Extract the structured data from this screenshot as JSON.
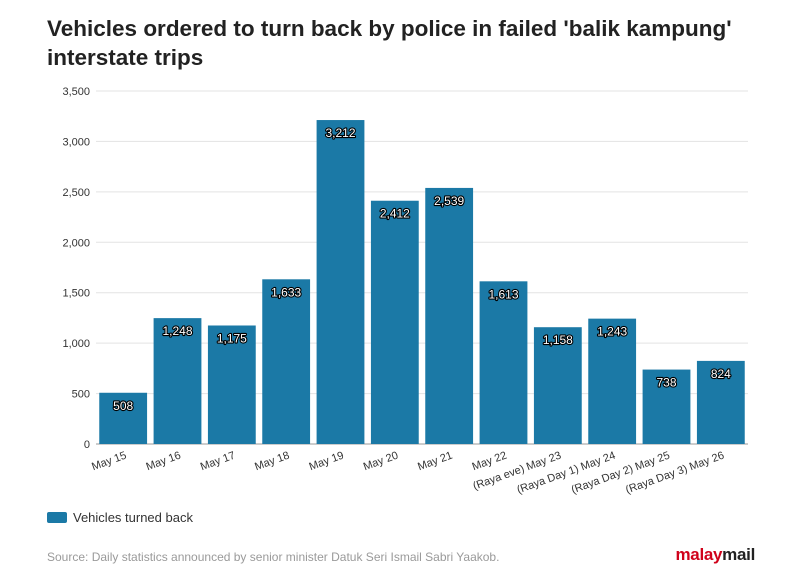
{
  "header": {
    "title": "Vehicles ordered to turn back by police in failed 'balik kampung' interstate trips"
  },
  "chart_data": {
    "type": "bar",
    "title": "Vehicles ordered to turn back by police in failed 'balik kampung' interstate trips",
    "categories": [
      "May 15",
      "May 16",
      "May 17",
      "May 18",
      "May 19",
      "May 20",
      "May 21",
      "May 22",
      "(Raya eve) May 23",
      "(Raya Day 1) May 24",
      "(Raya Day 2) May 25",
      "(Raya Day 3) May 26"
    ],
    "series": [
      {
        "name": "Vehicles turned back",
        "values": [
          508,
          1248,
          1175,
          1633,
          3212,
          2412,
          2539,
          1613,
          1158,
          1243,
          738,
          824
        ],
        "labels": [
          "508",
          "1,248",
          "1,175",
          "1,633",
          "3,212",
          "2,412",
          "2,539",
          "1,613",
          "1,158",
          "1,243",
          "738",
          "824"
        ],
        "color": "#1b79a6"
      }
    ],
    "ylim": [
      0,
      3500
    ],
    "yticks": [
      0,
      500,
      1000,
      1500,
      2000,
      2500,
      3000,
      3500
    ],
    "ytick_labels": [
      "0",
      "500",
      "1,000",
      "1,500",
      "2,000",
      "2,500",
      "3,000",
      "3,500"
    ],
    "grid": true,
    "legend": "bottom-left",
    "xlabel": "",
    "ylabel": ""
  },
  "legend": {
    "label": "Vehicles turned back",
    "color": "#1b79a6"
  },
  "footer": {
    "source": "Source: Daily statistics announced by senior minister Datuk Seri Ismail Sabri Yaakob.",
    "brand_malay": "malay",
    "brand_mail": "mail"
  }
}
